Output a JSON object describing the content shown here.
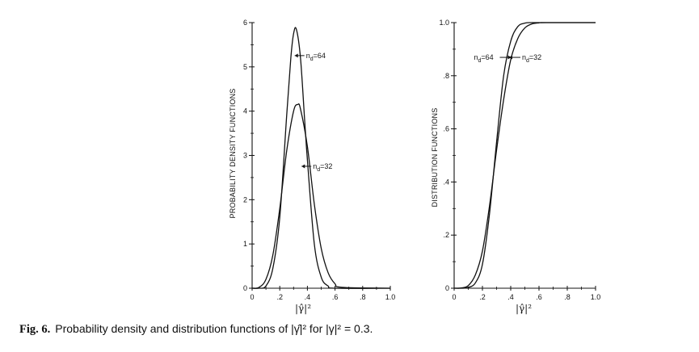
{
  "caption": {
    "label": "Fig. 6.",
    "text": "Probability density and distribution functions of |γ̂|² for |γ|² = 0.3."
  },
  "chart_data": [
    {
      "type": "line",
      "ylabel": "PROBABILITY DENSITY FUNCTIONS",
      "xlabel": "|γ̂|²",
      "xlim": [
        0,
        1.0
      ],
      "ylim": [
        0,
        6
      ],
      "x_tick_labels": [
        "0",
        ".2",
        ".4",
        ".6",
        ".8",
        "1.0"
      ],
      "y_tick_labels": [
        "0",
        "1",
        "2",
        "3",
        "4",
        "5",
        "6"
      ],
      "series": [
        {
          "name": "n_d=64",
          "x": [
            0,
            0.05,
            0.1,
            0.15,
            0.2,
            0.25,
            0.28,
            0.3,
            0.32,
            0.35,
            0.38,
            0.4,
            0.45,
            0.5,
            0.55,
            0.6,
            1.0
          ],
          "y": [
            0,
            0.0,
            0.05,
            0.45,
            1.6,
            3.9,
            5.2,
            5.75,
            5.85,
            5.2,
            3.8,
            2.9,
            1.0,
            0.25,
            0.05,
            0.0,
            0
          ]
        },
        {
          "name": "n_d=32",
          "x": [
            0,
            0.05,
            0.1,
            0.15,
            0.2,
            0.25,
            0.3,
            0.33,
            0.35,
            0.4,
            0.45,
            0.5,
            0.55,
            0.6,
            0.65,
            1.0
          ],
          "y": [
            0,
            0.02,
            0.2,
            0.75,
            1.8,
            3.1,
            4.0,
            4.15,
            4.05,
            3.2,
            1.9,
            0.9,
            0.35,
            0.1,
            0.02,
            0
          ]
        }
      ],
      "annotations": [
        {
          "main": "n",
          "sub": "d",
          "rest": "=64",
          "x": 0.39,
          "y": 5.2
        },
        {
          "main": "n",
          "sub": "d",
          "rest": "=32",
          "x": 0.44,
          "y": 2.7
        }
      ]
    },
    {
      "type": "line",
      "ylabel": "DISTRIBUTION FUNCTIONS",
      "xlabel": "|γ̂|²",
      "xlim": [
        0,
        1.0
      ],
      "ylim": [
        0,
        1.0
      ],
      "x_tick_labels": [
        "0",
        ".2",
        ".4",
        ".6",
        ".8",
        "1.0"
      ],
      "y_tick_labels": [
        "0",
        ".2",
        ".4",
        ".6",
        ".8",
        "1.0"
      ],
      "series": [
        {
          "name": "n_d=64",
          "x": [
            0,
            0.05,
            0.1,
            0.15,
            0.2,
            0.25,
            0.3,
            0.35,
            0.4,
            0.45,
            0.5,
            0.55,
            0.6,
            1.0
          ],
          "y": [
            0,
            0.0,
            0.003,
            0.02,
            0.09,
            0.28,
            0.55,
            0.8,
            0.93,
            0.985,
            0.998,
            1.0,
            1.0,
            1.0
          ]
        },
        {
          "name": "n_d=32",
          "x": [
            0,
            0.05,
            0.1,
            0.15,
            0.2,
            0.25,
            0.3,
            0.35,
            0.4,
            0.45,
            0.5,
            0.55,
            0.6,
            0.65,
            1.0
          ],
          "y": [
            0,
            0.001,
            0.01,
            0.05,
            0.14,
            0.31,
            0.52,
            0.71,
            0.86,
            0.94,
            0.98,
            0.995,
            0.999,
            1.0,
            1.0
          ]
        }
      ],
      "annotations": [
        {
          "main": "n",
          "sub": "d",
          "rest": "=64",
          "x": 0.14,
          "y": 0.86
        },
        {
          "main": "n",
          "sub": "d",
          "rest": "=32",
          "x": 0.48,
          "y": 0.86
        }
      ]
    }
  ]
}
